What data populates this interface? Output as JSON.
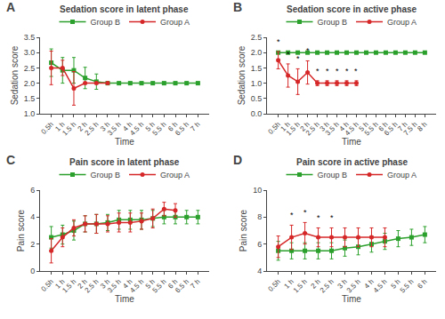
{
  "chart_data": [
    {
      "type": "line",
      "panel_label": "A",
      "title": "Sedation score in latent phase",
      "x_label": "Time",
      "y_label": "Sedation score",
      "categories": [
        "0.5h",
        "1 h",
        "1.5 h",
        "2 h",
        "2.5 h",
        "3 h",
        "3.5 h",
        "4 h",
        "4.5 h",
        "5 h",
        "5.5 h",
        "6 h",
        "6.5 h",
        "7 h"
      ],
      "series": [
        {
          "name": "Group B",
          "color": "#2ca02c",
          "marker": "square",
          "values": [
            2.67,
            2.42,
            2.42,
            2.17,
            2.05,
            2.0,
            2.0,
            2.0,
            2.0,
            2.0,
            2.0,
            2.0,
            2.0,
            2.0
          ],
          "errors": [
            0.45,
            0.42,
            0.42,
            0.35,
            0.25,
            0.0,
            0.0,
            0.0,
            0.0,
            0.0,
            0.0,
            0.0,
            0.0,
            0.0
          ]
        },
        {
          "name": "Group A",
          "color": "#d62728",
          "marker": "circle",
          "values": [
            2.5,
            2.5,
            1.83,
            2.0,
            2.0,
            2.0,
            null,
            null,
            null,
            null,
            null,
            null,
            null,
            null
          ],
          "errors": [
            0.55,
            0.25,
            0.55,
            0.0,
            0.0,
            0.0,
            null,
            null,
            null,
            null,
            null,
            null,
            null,
            null
          ]
        }
      ],
      "annotations": [],
      "ylim": [
        1.0,
        3.5
      ],
      "yticks": [
        {
          "value": 1.0,
          "label": "1.0"
        },
        1.5,
        {
          "value": 2.0,
          "label": "2.0"
        },
        2.5,
        {
          "value": 3.0,
          "label": "3.0"
        },
        3.5
      ],
      "grid": false,
      "legend": "top"
    },
    {
      "type": "line",
      "panel_label": "B",
      "title": "Sedation score in active phase",
      "x_label": "Time",
      "y_label": "Sedation score",
      "categories": [
        "0.5h",
        "1 h",
        "1.5 h",
        "2 h",
        "2.5 h",
        "3 h",
        "3.5 h",
        "4 h",
        "4.5 h",
        "5 h",
        "5.5 h",
        "6 h",
        "6.5 h",
        "7 h",
        "7.5 h",
        "8 h"
      ],
      "series": [
        {
          "name": "Group B",
          "color": "#2ca02c",
          "marker": "square",
          "values": [
            2.0,
            2.0,
            2.0,
            2.0,
            2.0,
            2.0,
            2.0,
            2.0,
            2.0,
            2.0,
            2.0,
            2.0,
            2.0,
            2.0,
            2.0,
            2.0
          ],
          "errors": [
            0.0,
            0.0,
            0.0,
            0.0,
            0.0,
            0.0,
            0.0,
            0.0,
            0.0,
            0.0,
            0.0,
            0.0,
            0.0,
            0.0,
            0.0,
            0.0
          ]
        },
        {
          "name": "Group A",
          "color": "#d62728",
          "marker": "circle",
          "values": [
            1.75,
            1.25,
            1.05,
            1.35,
            1.0,
            1.0,
            1.0,
            1.0,
            1.0,
            null,
            null,
            null,
            null,
            null,
            null,
            null
          ],
          "errors": [
            0.28,
            0.38,
            0.42,
            0.38,
            0.08,
            0.08,
            0.08,
            0.08,
            0.08,
            null,
            null,
            null,
            null,
            null,
            null,
            null
          ]
        }
      ],
      "annotations": [
        {
          "text": "*",
          "x": "0.5h",
          "series": "Group A"
        },
        {
          "text": "*",
          "x": "1 h",
          "series": "Group A"
        },
        {
          "text": "*",
          "x": "1.5 h",
          "series": "Group A"
        },
        {
          "text": "*",
          "x": "2 h",
          "series": "Group A"
        },
        {
          "text": "*",
          "x": "2.5 h",
          "series": "Group A"
        },
        {
          "text": "*",
          "x": "3 h",
          "series": "Group A"
        },
        {
          "text": "*",
          "x": "3.5 h",
          "series": "Group A"
        },
        {
          "text": "*",
          "x": "4 h",
          "series": "Group A"
        },
        {
          "text": "*",
          "x": "4.5 h",
          "series": "Group A"
        }
      ],
      "ylim": [
        0.0,
        2.5
      ],
      "yticks": [
        {
          "value": 0.0,
          "label": "0.0"
        },
        0.5,
        {
          "value": 1.0,
          "label": "1.0"
        },
        1.5,
        {
          "value": 2.0,
          "label": "2.0"
        },
        2.5
      ],
      "grid": false,
      "legend": "top"
    },
    {
      "type": "line",
      "panel_label": "C",
      "title": "Pain score in latent phase",
      "x_label": "Time",
      "y_label": "Pain score",
      "categories": [
        "0.5h",
        "1 h",
        "1.5 h",
        "2 h",
        "2.5 h",
        "3 h",
        "3.5 h",
        "4 h",
        "4.5 h",
        "5 h",
        "5.5 h",
        "6 h",
        "6.5 h",
        "7 h"
      ],
      "series": [
        {
          "name": "Group B",
          "color": "#2ca02c",
          "marker": "square",
          "values": [
            2.5,
            2.7,
            3.0,
            3.5,
            3.5,
            3.6,
            3.8,
            3.8,
            3.8,
            3.9,
            4.0,
            4.0,
            4.0,
            4.0
          ],
          "errors": [
            0.8,
            0.7,
            0.7,
            0.6,
            0.7,
            0.6,
            0.7,
            0.7,
            0.7,
            0.6,
            0.5,
            0.5,
            0.5,
            0.5
          ]
        },
        {
          "name": "Group A",
          "color": "#d62728",
          "marker": "circle",
          "values": [
            1.5,
            2.5,
            3.2,
            3.5,
            3.5,
            3.5,
            3.6,
            3.6,
            3.7,
            3.9,
            4.6,
            4.5,
            null,
            null
          ],
          "errors": [
            0.9,
            0.7,
            0.6,
            0.6,
            0.7,
            0.6,
            0.7,
            0.7,
            0.6,
            0.7,
            0.5,
            0.5,
            null,
            null
          ]
        }
      ],
      "annotations": [],
      "ylim": [
        0,
        6
      ],
      "yticks": [
        0,
        2,
        4,
        6
      ],
      "grid": false,
      "legend": "top"
    },
    {
      "type": "line",
      "panel_label": "D",
      "title": "Pain score in active phase",
      "x_label": "Time",
      "y_label": "Pain score",
      "categories": [
        "0.5h",
        "1 h",
        "1.5 h",
        "2 h",
        "2.5 h",
        "3 h",
        "3.5 h",
        "4 h",
        "4.5 h",
        "5 h",
        "5.5 h",
        "6 h"
      ],
      "series": [
        {
          "name": "Group B",
          "color": "#2ca02c",
          "marker": "square",
          "values": [
            5.5,
            5.5,
            5.5,
            5.5,
            5.5,
            5.7,
            5.8,
            6.0,
            6.2,
            6.4,
            6.5,
            6.7
          ],
          "errors": [
            0.7,
            0.6,
            0.6,
            0.6,
            0.6,
            0.6,
            0.6,
            0.6,
            0.6,
            0.6,
            0.6,
            0.6
          ]
        },
        {
          "name": "Group A",
          "color": "#d62728",
          "marker": "circle",
          "values": [
            5.8,
            6.5,
            6.8,
            6.5,
            6.5,
            6.5,
            6.5,
            6.5,
            6.5,
            null,
            null,
            null
          ],
          "errors": [
            0.8,
            0.9,
            0.8,
            0.7,
            0.7,
            0.7,
            0.7,
            0.7,
            0.7,
            null,
            null,
            null
          ]
        }
      ],
      "annotations": [
        {
          "text": "*",
          "x": "1 h",
          "series": "Group A"
        },
        {
          "text": "*",
          "x": "1.5 h",
          "series": "Group A"
        },
        {
          "text": "*",
          "x": "2 h",
          "series": "Group A"
        },
        {
          "text": "*",
          "x": "2.5 h",
          "series": "Group A"
        }
      ],
      "ylim": [
        4,
        10
      ],
      "yticks": [
        4,
        6,
        8,
        10
      ],
      "grid": false,
      "legend": "top"
    }
  ]
}
